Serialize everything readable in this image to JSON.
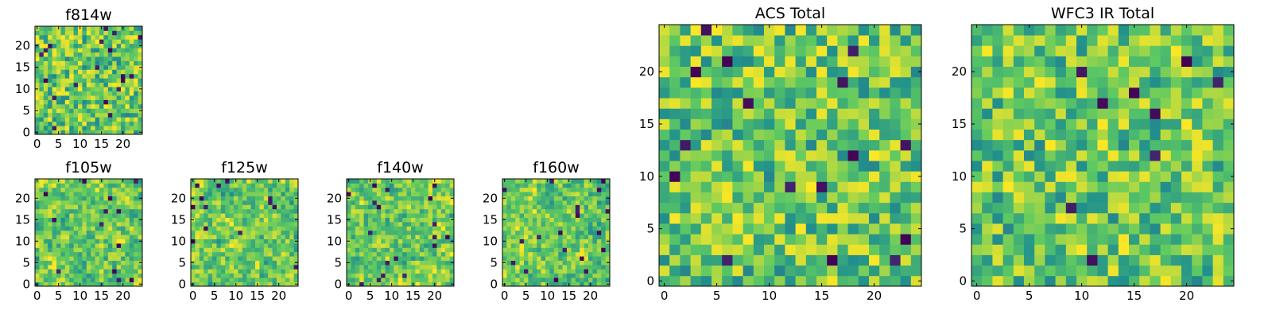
{
  "figure": {
    "colormap": "viridis",
    "colormap_stops": [
      "#440154",
      "#3b528b",
      "#21918c",
      "#5ec962",
      "#fde725"
    ],
    "frame_color": "#000000",
    "background": "#ffffff"
  },
  "chart_data": [
    {
      "type": "heatmap",
      "title": "f814w",
      "grid": [
        25,
        25
      ],
      "xlim": [
        -0.5,
        24.5
      ],
      "ylim": [
        -0.5,
        24.5
      ],
      "xticks": [
        0,
        5,
        10,
        15,
        20
      ],
      "yticks": [
        0,
        5,
        10,
        15,
        20
      ],
      "seed": 11,
      "smooth": 0,
      "dark_frac": 0.03
    },
    {
      "type": "heatmap",
      "title": "f105w",
      "grid": [
        25,
        25
      ],
      "xlim": [
        -0.5,
        24.5
      ],
      "ylim": [
        -0.5,
        24.5
      ],
      "xticks": [
        0,
        5,
        10,
        15,
        20
      ],
      "yticks": [
        0,
        5,
        10,
        15,
        20
      ],
      "seed": 23,
      "smooth": 1,
      "dark_frac": 0.02
    },
    {
      "type": "heatmap",
      "title": "f125w",
      "grid": [
        25,
        25
      ],
      "xlim": [
        -0.5,
        24.5
      ],
      "ylim": [
        -0.5,
        24.5
      ],
      "xticks": [
        0,
        5,
        10,
        15,
        20
      ],
      "yticks": [
        0,
        5,
        10,
        15,
        20
      ],
      "seed": 37,
      "smooth": 1,
      "dark_frac": 0.02
    },
    {
      "type": "heatmap",
      "title": "f140w",
      "grid": [
        25,
        25
      ],
      "xlim": [
        -0.5,
        24.5
      ],
      "ylim": [
        -0.5,
        24.5
      ],
      "xticks": [
        0,
        5,
        10,
        15,
        20
      ],
      "yticks": [
        0,
        5,
        10,
        15,
        20
      ],
      "seed": 41,
      "smooth": 1,
      "dark_frac": 0.03
    },
    {
      "type": "heatmap",
      "title": "f160w",
      "grid": [
        25,
        25
      ],
      "xlim": [
        -0.5,
        24.5
      ],
      "ylim": [
        -0.5,
        24.5
      ],
      "xticks": [
        0,
        5,
        10,
        15,
        20
      ],
      "yticks": [
        0,
        5,
        10,
        15,
        20
      ],
      "seed": 53,
      "smooth": 1,
      "dark_frac": 0.03
    },
    {
      "type": "heatmap",
      "title": "ACS Total",
      "grid": [
        25,
        25
      ],
      "xlim": [
        -0.5,
        24.5
      ],
      "ylim": [
        -0.5,
        24.5
      ],
      "xticks": [
        0,
        5,
        10,
        15,
        20
      ],
      "yticks": [
        0,
        5,
        10,
        15,
        20
      ],
      "seed": 67,
      "smooth": 0,
      "dark_frac": 0.025
    },
    {
      "type": "heatmap",
      "title": "WFC3 IR Total",
      "grid": [
        25,
        25
      ],
      "xlim": [
        -0.5,
        24.5
      ],
      "ylim": [
        -0.5,
        24.5
      ],
      "xticks": [
        0,
        5,
        10,
        15,
        20
      ],
      "yticks": [
        0,
        5,
        10,
        15,
        20
      ],
      "seed": 79,
      "smooth": 0,
      "dark_frac": 0.015
    }
  ]
}
